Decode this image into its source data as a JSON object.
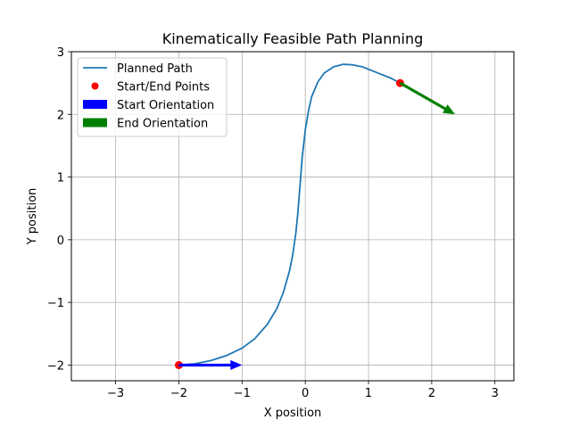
{
  "chart_data": {
    "type": "line",
    "title": "Kinematically Feasible Path Planning",
    "xlabel": "X position",
    "ylabel": "Y position",
    "xlim": [
      -3.7,
      3.3
    ],
    "ylim": [
      -2.25,
      3.0
    ],
    "grid": true,
    "legend_placement": "top-left",
    "x_ticks": [
      -3,
      -2,
      -1,
      0,
      1,
      2,
      3
    ],
    "x_tick_labels": [
      "−3",
      "−2",
      "−1",
      "0",
      "1",
      "2",
      "3"
    ],
    "y_ticks": [
      -2,
      -1,
      0,
      1,
      2,
      3
    ],
    "y_tick_labels": [
      "−2",
      "−1",
      "0",
      "1",
      "2",
      "3"
    ],
    "series": [
      {
        "name": "Planned Path",
        "kind": "line",
        "color": "#1f77b4",
        "x": [
          -2.0,
          -1.75,
          -1.5,
          -1.25,
          -1.0,
          -0.8,
          -0.6,
          -0.45,
          -0.35,
          -0.25,
          -0.2,
          -0.15,
          -0.12,
          -0.08,
          -0.05,
          0.0,
          0.05,
          0.1,
          0.2,
          0.3,
          0.45,
          0.6,
          0.75,
          0.9,
          1.05,
          1.2,
          1.35,
          1.5
        ],
        "y": [
          -2.0,
          -1.98,
          -1.93,
          -1.85,
          -1.73,
          -1.58,
          -1.35,
          -1.1,
          -0.85,
          -0.5,
          -0.25,
          0.1,
          0.4,
          0.9,
          1.3,
          1.75,
          2.05,
          2.28,
          2.52,
          2.66,
          2.76,
          2.8,
          2.79,
          2.76,
          2.7,
          2.64,
          2.58,
          2.5
        ]
      },
      {
        "name": "Start/End Points",
        "kind": "scatter",
        "color": "#ff0000",
        "x": [
          -2.0,
          1.5
        ],
        "y": [
          -2.0,
          2.5
        ]
      },
      {
        "name": "Start Orientation",
        "kind": "arrow",
        "color": "#0000ff",
        "x": [
          -2.0
        ],
        "y": [
          -2.0
        ],
        "dx": [
          1.0
        ],
        "dy": [
          0.0
        ]
      },
      {
        "name": "End Orientation",
        "kind": "arrow",
        "color": "#008000",
        "x": [
          1.5
        ],
        "y": [
          2.5
        ],
        "dx": [
          0.87
        ],
        "dy": [
          -0.5
        ]
      }
    ]
  }
}
